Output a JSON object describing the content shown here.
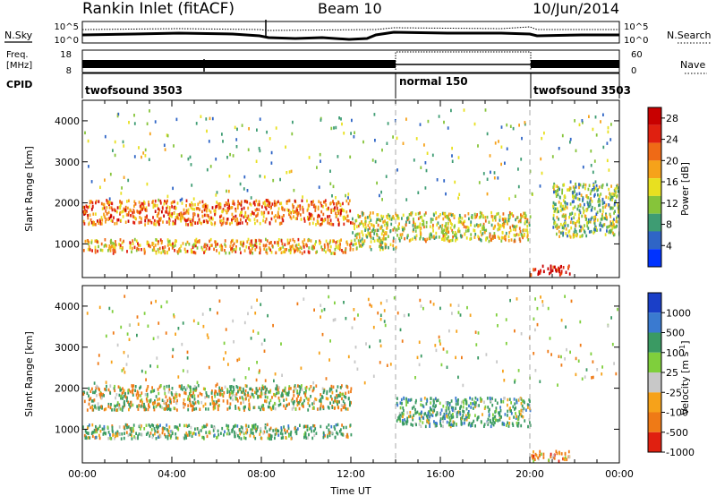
{
  "header": {
    "station": "Rankin Inlet (fitACF)",
    "beam": "Beam 10",
    "date": "10/Jun/2014"
  },
  "noise_panel": {
    "left_label": "N.Sky",
    "right_label": "N.Search",
    "left_ticks": [
      "10^5",
      "10^0"
    ],
    "right_ticks": [
      "10^5",
      "10^0"
    ]
  },
  "freq_panel": {
    "left_label_1": "Freq.",
    "left_label_2": "[MHz]",
    "right_label": "Nave",
    "left_ticks": [
      "18",
      "8"
    ],
    "right_ticks": [
      "60",
      "0"
    ]
  },
  "cpid_panel": {
    "label": "CPID",
    "segments": [
      {
        "name": "twofsound 3503",
        "start_hour": 0,
        "end_hour": 14
      },
      {
        "name": "normal 150",
        "start_hour": 14,
        "end_hour": 20
      },
      {
        "name": "twofsound 3503",
        "start_hour": 20,
        "end_hour": 24
      }
    ]
  },
  "chart_data": [
    {
      "type": "heatmap",
      "parameter": "Power",
      "ylabel": "Slant Range [km]",
      "xlim_hours": [
        0,
        24
      ],
      "ylim_km": [
        180,
        4500
      ],
      "yticks": [
        "1000",
        "2000",
        "3000",
        "4000"
      ],
      "colorbar_label": "Power [dB]",
      "colorbar_ticks": [
        "4",
        "8",
        "12",
        "16",
        "20",
        "24",
        "28"
      ],
      "colorbar_range": [
        0,
        30
      ],
      "bands": [
        {
          "x": [
            0,
            12
          ],
          "y": [
            1500,
            2100
          ],
          "mean_value": 21
        },
        {
          "x": [
            0,
            12
          ],
          "y": [
            800,
            1150
          ],
          "mean_value": 18
        },
        {
          "x": [
            12,
            14
          ],
          "y": [
            900,
            1800
          ],
          "mean_value": 14
        },
        {
          "x": [
            14,
            20
          ],
          "y": [
            1100,
            1800
          ],
          "mean_value": 15
        },
        {
          "x": [
            20,
            21.8
          ],
          "y": [
            250,
            500
          ],
          "mean_value": 27
        },
        {
          "x": [
            21,
            24
          ],
          "y": [
            1200,
            2500
          ],
          "mean_value": 12
        }
      ]
    },
    {
      "type": "heatmap",
      "parameter": "Velocity",
      "xlabel": "Time UT",
      "ylabel": "Slant Range [km]",
      "xlim_hours": [
        0,
        24
      ],
      "ylim_km": [
        180,
        4500
      ],
      "xticks": [
        "00:00",
        "04:00",
        "08:00",
        "12:00",
        "16:00",
        "20:00",
        "00:00"
      ],
      "yticks": [
        "1000",
        "2000",
        "3000",
        "4000"
      ],
      "colorbar_label": "Velocity [m s",
      "colorbar_sup": "-1",
      "colorbar_ticks": [
        "1000",
        "500",
        "100",
        "25",
        "-25",
        "-100",
        "-500",
        "-1000"
      ],
      "bands": [
        {
          "x": [
            0,
            12
          ],
          "y": [
            1500,
            2100
          ],
          "mean_value": 0
        },
        {
          "x": [
            0,
            12
          ],
          "y": [
            800,
            1150
          ],
          "mean_value": 180
        },
        {
          "x": [
            14,
            20
          ],
          "y": [
            1100,
            1800
          ],
          "mean_value": 250
        },
        {
          "x": [
            20,
            21.8
          ],
          "y": [
            250,
            500
          ],
          "mean_value": -300
        }
      ]
    }
  ],
  "colors": {
    "power_scale": [
      "#0033ff",
      "#2f65c6",
      "#3e9c73",
      "#86c43a",
      "#e8e020",
      "#f6a21a",
      "#ef6a16",
      "#e02010",
      "#c80000"
    ],
    "velocity_scale": [
      "#1a3fc8",
      "#3a7ad0",
      "#3a9a63",
      "#7fcf3c",
      "#c8c8c8",
      "#f6a21a",
      "#ef7a16",
      "#e02010"
    ]
  }
}
